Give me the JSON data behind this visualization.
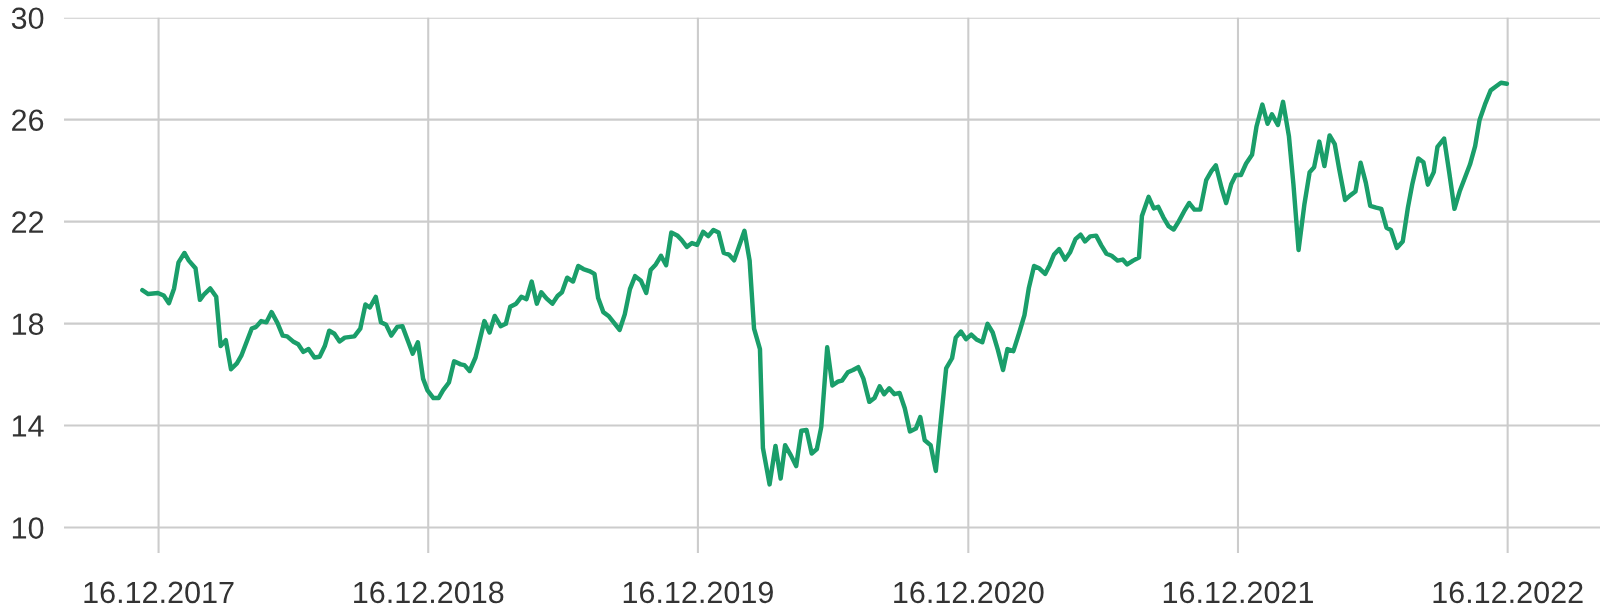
{
  "chart_data": {
    "type": "line",
    "x": [
      "2017-11-24",
      "2017-12-02",
      "2017-12-15",
      "2017-12-23",
      "2017-12-30",
      "2018-01-06",
      "2018-01-12",
      "2018-01-20",
      "2018-01-26",
      "2018-02-04",
      "2018-02-10",
      "2018-02-16",
      "2018-02-24",
      "2018-03-04",
      "2018-03-10",
      "2018-03-17",
      "2018-03-24",
      "2018-04-01",
      "2018-04-07",
      "2018-04-21",
      "2018-04-27",
      "2018-05-04",
      "2018-05-11",
      "2018-05-18",
      "2018-05-26",
      "2018-06-02",
      "2018-06-08",
      "2018-06-16",
      "2018-06-23",
      "2018-06-30",
      "2018-07-07",
      "2018-07-15",
      "2018-07-22",
      "2018-07-29",
      "2018-08-04",
      "2018-08-11",
      "2018-08-18",
      "2018-08-25",
      "2018-09-07",
      "2018-09-15",
      "2018-09-22",
      "2018-09-28",
      "2018-10-06",
      "2018-10-13",
      "2018-10-20",
      "2018-10-27",
      "2018-11-04",
      "2018-11-11",
      "2018-11-25",
      "2018-12-02",
      "2018-12-09",
      "2018-12-15",
      "2018-12-23",
      "2018-12-30",
      "2019-01-05",
      "2019-01-13",
      "2019-01-20",
      "2019-01-29",
      "2019-02-03",
      "2019-02-10",
      "2019-02-18",
      "2019-03-02",
      "2019-03-09",
      "2019-03-16",
      "2019-03-24",
      "2019-03-31",
      "2019-04-06",
      "2019-04-14",
      "2019-04-21",
      "2019-04-28",
      "2019-05-05",
      "2019-05-12",
      "2019-05-18",
      "2019-05-25",
      "2019-06-02",
      "2019-06-09",
      "2019-06-15",
      "2019-06-22",
      "2019-06-30",
      "2019-07-07",
      "2019-07-14",
      "2019-07-22",
      "2019-07-29",
      "2019-08-03",
      "2019-08-10",
      "2019-08-17",
      "2019-08-24",
      "2019-09-01",
      "2019-09-08",
      "2019-09-15",
      "2019-09-22",
      "2019-09-30",
      "2019-10-07",
      "2019-10-13",
      "2019-10-20",
      "2019-10-27",
      "2019-11-03",
      "2019-11-10",
      "2019-11-18",
      "2019-11-24",
      "2019-12-01",
      "2019-12-08",
      "2019-12-15",
      "2019-12-23",
      "2019-12-30",
      "2020-01-06",
      "2020-01-13",
      "2020-01-20",
      "2020-01-27",
      "2020-02-03",
      "2020-02-17",
      "2020-02-24",
      "2020-03-01",
      "2020-03-09",
      "2020-03-13",
      "2020-03-22",
      "2020-03-30",
      "2020-04-06",
      "2020-04-12",
      "2020-04-20",
      "2020-04-27",
      "2020-05-04",
      "2020-05-11",
      "2020-05-18",
      "2020-05-25",
      "2020-05-31",
      "2020-06-08",
      "2020-06-15",
      "2020-06-23",
      "2020-06-28",
      "2020-07-06",
      "2020-07-13",
      "2020-07-20",
      "2020-07-27",
      "2020-08-04",
      "2020-08-11",
      "2020-08-18",
      "2020-08-24",
      "2020-08-31",
      "2020-09-07",
      "2020-09-14",
      "2020-09-21",
      "2020-09-28",
      "2020-10-06",
      "2020-10-12",
      "2020-10-18",
      "2020-10-26",
      "2020-11-02",
      "2020-11-08",
      "2020-11-16",
      "2020-11-24",
      "2020-11-29",
      "2020-12-06",
      "2020-12-13",
      "2020-12-20",
      "2020-12-27",
      "2021-01-04",
      "2021-01-11",
      "2021-01-18",
      "2021-01-25",
      "2021-02-01",
      "2021-02-07",
      "2021-02-15",
      "2021-02-23",
      "2021-03-02",
      "2021-03-08",
      "2021-03-15",
      "2021-03-22",
      "2021-03-30",
      "2021-04-05",
      "2021-04-11",
      "2021-04-18",
      "2021-04-26",
      "2021-05-03",
      "2021-05-10",
      "2021-05-17",
      "2021-05-23",
      "2021-05-30",
      "2021-06-07",
      "2021-06-14",
      "2021-06-21",
      "2021-06-28",
      "2021-07-06",
      "2021-07-13",
      "2021-07-19",
      "2021-07-27",
      "2021-08-04",
      "2021-08-08",
      "2021-08-17",
      "2021-08-24",
      "2021-08-30",
      "2021-09-06",
      "2021-09-13",
      "2021-09-20",
      "2021-09-27",
      "2021-10-04",
      "2021-10-11",
      "2021-10-18",
      "2021-10-26",
      "2021-11-03",
      "2021-11-10",
      "2021-11-16",
      "2021-11-24",
      "2021-11-30",
      "2021-12-07",
      "2021-12-13",
      "2021-12-20",
      "2021-12-27",
      "2022-01-04",
      "2022-01-10",
      "2022-01-18",
      "2022-01-25",
      "2022-01-31",
      "2022-02-08",
      "2022-02-15",
      "2022-02-23",
      "2022-03-01",
      "2022-03-08",
      "2022-03-16",
      "2022-03-23",
      "2022-03-29",
      "2022-04-05",
      "2022-04-12",
      "2022-04-19",
      "2022-04-26",
      "2022-05-02",
      "2022-05-10",
      "2022-05-17",
      "2022-05-24",
      "2022-05-31",
      "2022-06-07",
      "2022-06-13",
      "2022-06-21",
      "2022-06-28",
      "2022-07-05",
      "2022-07-11",
      "2022-07-19",
      "2022-07-27",
      "2022-08-03",
      "2022-08-09",
      "2022-08-17",
      "2022-08-24",
      "2022-08-30",
      "2022-09-07",
      "2022-09-12",
      "2022-09-21",
      "2022-09-28",
      "2022-10-05",
      "2022-10-12",
      "2022-10-19",
      "2022-10-26",
      "2022-11-02",
      "2022-11-08",
      "2022-11-16",
      "2022-11-23",
      "2022-11-30",
      "2022-12-07",
      "2022-12-15"
    ],
    "series": [
      {
        "color": "#1a9e6a",
        "values": [
          19.31,
          19.16,
          19.2,
          19.1,
          18.8,
          19.38,
          20.4,
          20.77,
          20.47,
          20.17,
          18.93,
          19.16,
          19.38,
          19.05,
          17.12,
          17.35,
          16.21,
          16.44,
          16.74,
          17.8,
          17.87,
          18.1,
          18.05,
          18.45,
          18.02,
          17.53,
          17.5,
          17.3,
          17.19,
          16.89,
          17.0,
          16.67,
          16.7,
          17.12,
          17.72,
          17.6,
          17.3,
          17.45,
          17.5,
          17.8,
          18.75,
          18.63,
          19.05,
          18.05,
          17.95,
          17.53,
          17.87,
          17.9,
          16.82,
          17.27,
          15.84,
          15.38,
          15.08,
          15.08,
          15.38,
          15.69,
          16.52,
          16.4,
          16.37,
          16.14,
          16.67,
          18.1,
          17.65,
          18.3,
          17.9,
          17.99,
          18.66,
          18.78,
          19.05,
          18.96,
          19.65,
          18.78,
          19.23,
          18.99,
          18.78,
          19.08,
          19.23,
          19.8,
          19.65,
          20.26,
          20.14,
          20.06,
          19.95,
          19.0,
          18.45,
          18.3,
          18.05,
          17.75,
          18.36,
          19.35,
          19.86,
          19.68,
          19.2,
          20.1,
          20.32,
          20.66,
          20.29,
          21.57,
          21.46,
          21.28,
          21.01,
          21.16,
          21.09,
          21.6,
          21.43,
          21.67,
          21.57,
          20.77,
          20.71,
          20.48,
          21.64,
          20.47,
          17.8,
          17.0,
          13.12,
          11.69,
          13.2,
          11.92,
          13.23,
          12.82,
          12.41,
          13.8,
          13.83,
          12.9,
          13.08,
          13.95,
          17.07,
          15.57,
          15.73,
          15.76,
          16.09,
          16.18,
          16.29,
          15.84,
          14.93,
          15.08,
          15.54,
          15.23,
          15.46,
          15.23,
          15.28,
          14.68,
          13.77,
          13.88,
          14.33,
          13.42,
          13.23,
          12.22,
          13.95,
          16.24,
          16.64,
          17.45,
          17.69,
          17.39,
          17.57,
          17.38,
          17.27,
          17.99,
          17.65,
          16.97,
          16.18,
          17.0,
          16.92,
          17.65,
          18.33,
          19.41,
          20.26,
          20.17,
          19.95,
          20.29,
          20.71,
          20.92,
          20.51,
          20.81,
          21.31,
          21.49,
          21.22,
          21.42,
          21.45,
          21.07,
          20.74,
          20.66,
          20.47,
          20.51,
          20.32,
          20.47,
          20.59,
          22.22,
          22.97,
          22.52,
          22.58,
          22.17,
          21.82,
          21.69,
          22.02,
          22.4,
          22.73,
          22.47,
          22.47,
          23.63,
          23.98,
          24.21,
          23.3,
          22.73,
          23.48,
          23.83,
          23.83,
          24.28,
          24.62,
          25.72,
          26.59,
          25.84,
          26.21,
          25.79,
          26.7,
          25.34,
          23.48,
          20.89,
          22.7,
          23.94,
          24.13,
          25.14,
          24.18,
          25.38,
          25.04,
          24.06,
          22.85,
          23.03,
          23.18,
          24.31,
          23.53,
          22.62,
          22.55,
          22.5,
          21.76,
          21.67,
          20.97,
          21.22,
          22.55,
          23.48,
          24.48,
          24.33,
          23.45,
          23.94,
          24.93,
          25.26,
          23.91,
          22.5,
          23.18,
          23.71,
          24.24,
          24.96,
          25.99,
          26.65,
          27.15,
          27.3,
          27.45,
          27.41
        ]
      }
    ],
    "xlim": [
      "2017-08-10",
      "2023-04-20"
    ],
    "xticks": [
      {
        "value": "2017-12-16",
        "label": "16.12.2017"
      },
      {
        "value": "2018-12-16",
        "label": "16.12.2018"
      },
      {
        "value": "2019-12-16",
        "label": "16.12.2019"
      },
      {
        "value": "2020-12-16",
        "label": "16.12.2020"
      },
      {
        "value": "2021-12-16",
        "label": "16.12.2021"
      },
      {
        "value": "2022-12-16",
        "label": "16.12.2022"
      }
    ],
    "ylim": [
      9,
      30
    ],
    "yticks": [
      10,
      14,
      18,
      22,
      26,
      30
    ],
    "grid": true,
    "line_style": "solid",
    "marker": "none"
  }
}
